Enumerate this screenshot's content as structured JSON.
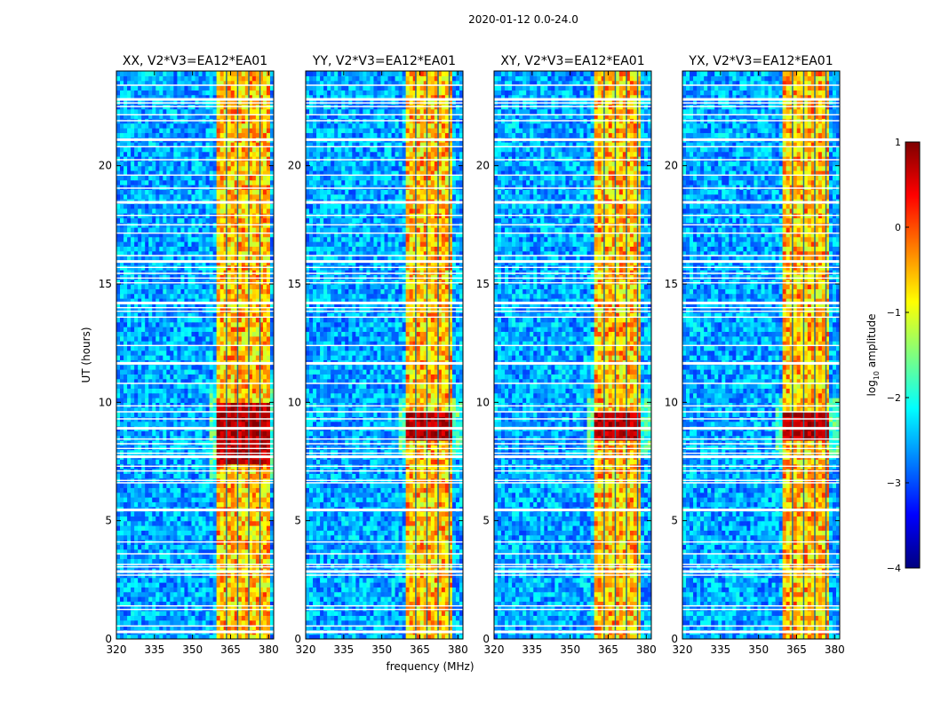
{
  "figure": {
    "suptitle": "2020-01-12 0.0-24.0",
    "xlabel": "frequency (MHz)",
    "ylabel": "UT (hours)"
  },
  "chart_data": {
    "type": "heatmap",
    "title": "2020-01-12 0.0-24.0",
    "xlabel": "frequency (MHz)",
    "ylabel": "UT (hours)",
    "xlim": [
      320,
      382
    ],
    "ylim": [
      0,
      24
    ],
    "xticks": [
      320,
      335,
      350,
      365,
      380
    ],
    "yticks": [
      0,
      5,
      10,
      15,
      20
    ],
    "panels": [
      {
        "title": "XX, V2*V3=EA12*EA01",
        "rfi_band_mhz": [
          360,
          380
        ],
        "peak_ut_hours": [
          7.5,
          10
        ]
      },
      {
        "title": "YY, V2*V3=EA12*EA01",
        "rfi_band_mhz": [
          360,
          378
        ],
        "peak_ut_hours": [
          8.5,
          9.5
        ]
      },
      {
        "title": "XY, V2*V3=EA12*EA01",
        "rfi_band_mhz": [
          360,
          378
        ],
        "peak_ut_hours": [
          8.5,
          9.5
        ]
      },
      {
        "title": "YX, V2*V3=EA12*EA01",
        "rfi_band_mhz": [
          360,
          378
        ],
        "peak_ut_hours": [
          8.5,
          9.5
        ]
      }
    ],
    "flagged_ut_hours": [
      0.3,
      0.55,
      1.25,
      1.4,
      2.7,
      2.85,
      3.05,
      3.15,
      3.6,
      4.1,
      5.45,
      6.6,
      6.7,
      7.1,
      7.3,
      7.7,
      7.85,
      8.05,
      8.25,
      8.45,
      8.9,
      9.3,
      9.6,
      9.85,
      10.8,
      11.65,
      12.4,
      13.6,
      13.85,
      14.0,
      14.2,
      15.05,
      15.25,
      15.45,
      15.7,
      15.95,
      16.2,
      17.15,
      17.5,
      17.9,
      18.45,
      19.05,
      19.6,
      20.25,
      20.8,
      21.1,
      21.9,
      22.15,
      22.5,
      22.65,
      22.8,
      23.4
    ],
    "channel_gap_mhz": [
      363.4,
      367.8,
      372.2,
      376.6
    ],
    "colorbar": {
      "label": "log",
      "label_sub": "10",
      "label_suffix": " amplitude",
      "range": [
        -4,
        1
      ],
      "ticks": [
        1,
        0,
        -1,
        -2,
        -3,
        -4
      ],
      "tick_labels": [
        "1",
        "0",
        "−1",
        "−2",
        "−3",
        "−4"
      ],
      "colormap": "jet",
      "colors": [
        "#00007f",
        "#0000ff",
        "#007fff",
        "#00ffff",
        "#7fff7f",
        "#ffff00",
        "#ff7f00",
        "#ff0000",
        "#7f0000"
      ]
    }
  }
}
